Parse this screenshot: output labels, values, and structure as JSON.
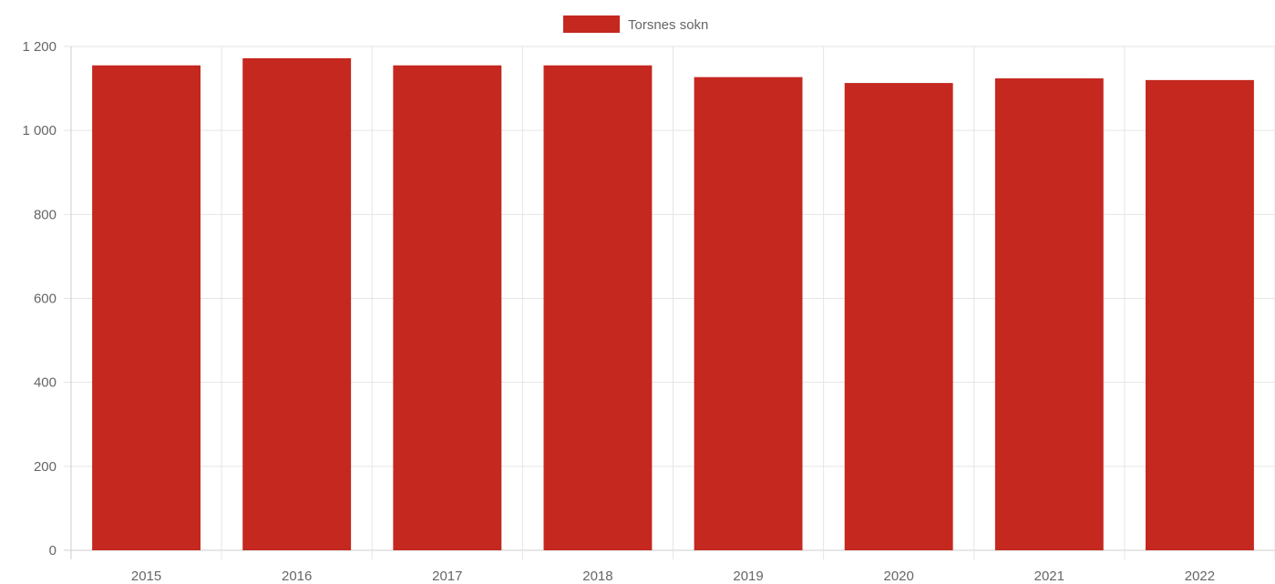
{
  "chart_data": {
    "type": "bar",
    "categories": [
      "2015",
      "2016",
      "2017",
      "2018",
      "2019",
      "2020",
      "2021",
      "2022"
    ],
    "series": [
      {
        "name": "Torsnes sokn",
        "values": [
          1155,
          1172,
          1155,
          1155,
          1127,
          1113,
          1124,
          1120
        ],
        "color": "#c4281f"
      }
    ],
    "y_ticks": [
      "0",
      "200",
      "400",
      "600",
      "800",
      "1 000",
      "1 200"
    ],
    "ylim": [
      0,
      1200
    ],
    "title": "",
    "xlabel": "",
    "ylabel": "",
    "grid": true,
    "legend_position": "top-center"
  }
}
